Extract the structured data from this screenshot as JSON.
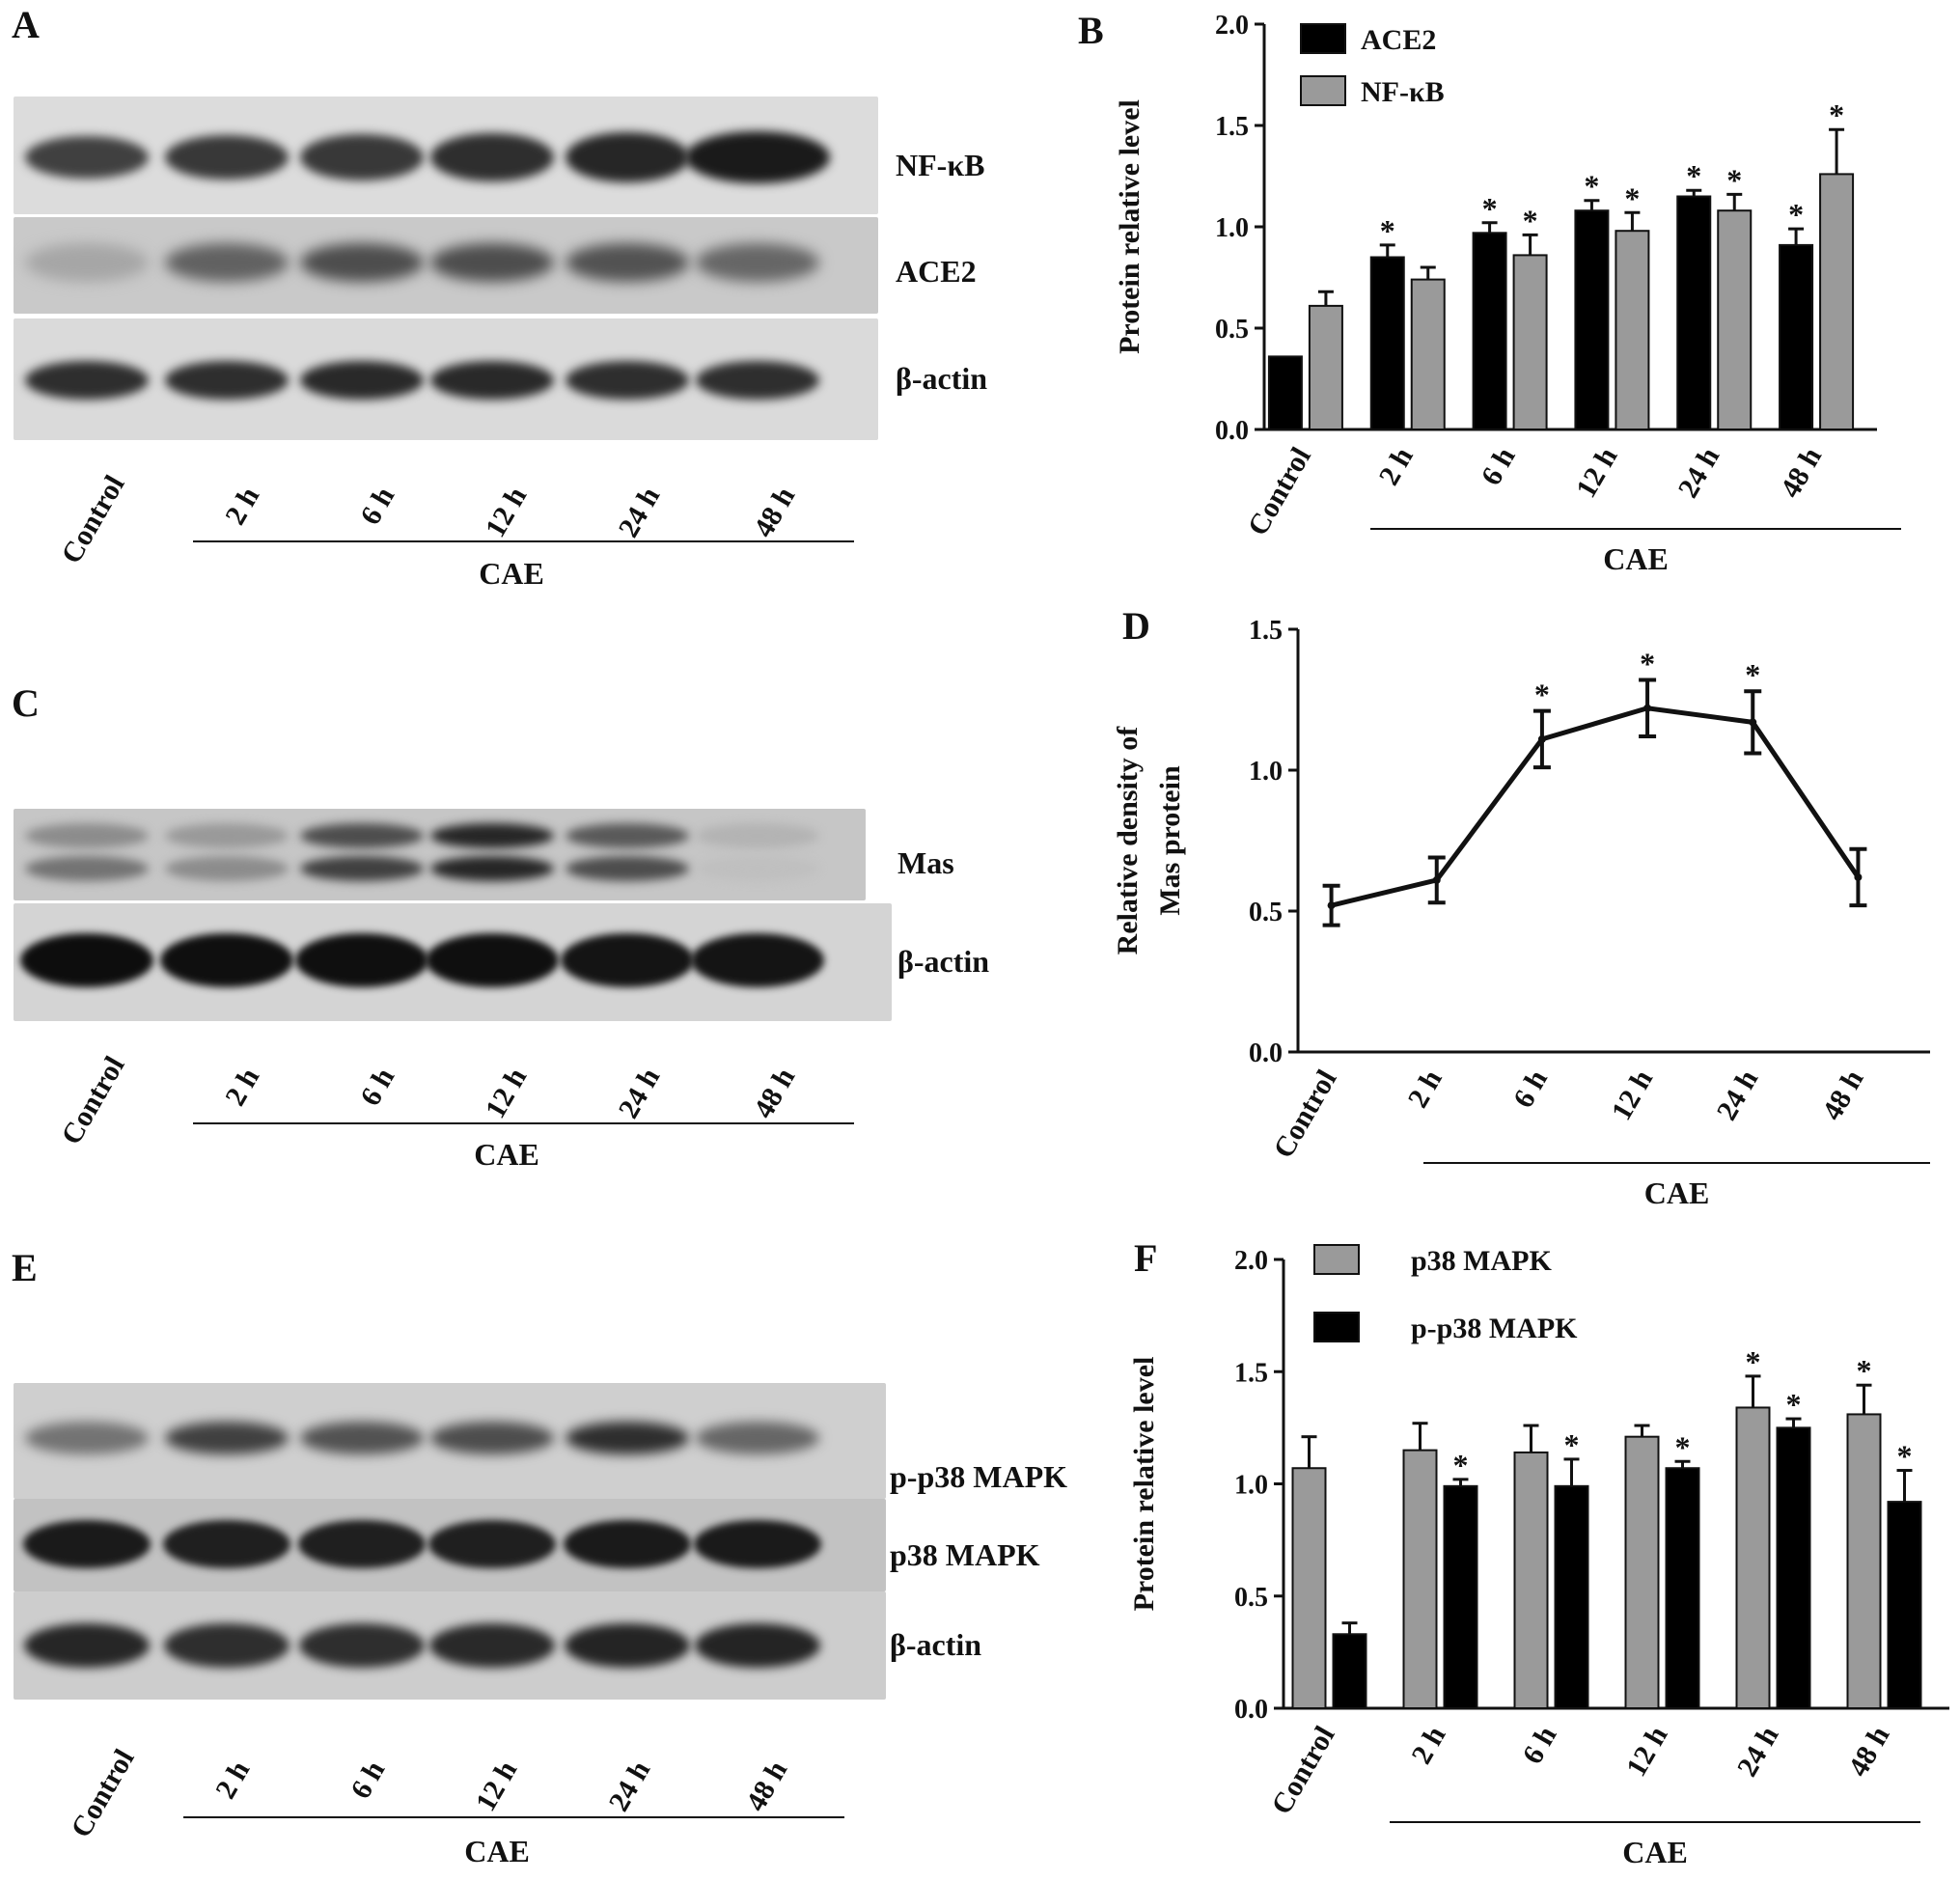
{
  "panels": {
    "A": {
      "letter": "A",
      "labels": [
        "NF-κB",
        "ACE2",
        "β-actin"
      ],
      "lanes": [
        "Control",
        "2 h",
        "6 h",
        "12 h",
        "24 h",
        "48 h"
      ],
      "group": "CAE"
    },
    "C": {
      "letter": "C",
      "labels": [
        "Mas",
        "β-actin"
      ],
      "lanes": [
        "Control",
        "2 h",
        "6 h",
        "12 h",
        "24 h",
        "48 h"
      ],
      "group": "CAE"
    },
    "E": {
      "letter": "E",
      "labels": [
        "p-p38 MAPK",
        "p38 MAPK",
        "β-actin"
      ],
      "lanes": [
        "Control",
        "2 h",
        "6 h",
        "12 h",
        "24 h",
        "48 h"
      ],
      "group": "CAE"
    }
  },
  "chart_data": [
    {
      "panel": "B",
      "type": "bar",
      "ylabel": "Protein relative level",
      "xgroup_label": "CAE",
      "categories": [
        "Control",
        "2 h",
        "6 h",
        "12 h",
        "24 h",
        "48 h"
      ],
      "ylim": [
        0,
        2.0
      ],
      "yticks": [
        "0.0",
        "0.5",
        "1.0",
        "1.5",
        "2.0"
      ],
      "legend_position": "top-left",
      "series": [
        {
          "name": "ACE2",
          "color": "#000000",
          "values": [
            0.36,
            0.85,
            0.97,
            1.08,
            1.15,
            0.91
          ],
          "errors": [
            0.0,
            0.06,
            0.05,
            0.05,
            0.03,
            0.08
          ],
          "significant": [
            false,
            true,
            true,
            true,
            true,
            true
          ]
        },
        {
          "name": "NF-κB",
          "color": "#9a9a9a",
          "values": [
            0.61,
            0.74,
            0.86,
            0.98,
            1.08,
            1.26
          ],
          "errors": [
            0.07,
            0.06,
            0.1,
            0.09,
            0.08,
            0.22
          ],
          "significant": [
            false,
            false,
            true,
            true,
            true,
            true
          ]
        }
      ]
    },
    {
      "panel": "D",
      "type": "line",
      "ylabel": "Relative density of Mas protein",
      "ylabel_lines": [
        "Relative density of",
        "Mas protein"
      ],
      "xgroup_label": "CAE",
      "categories": [
        "Control",
        "2 h",
        "6 h",
        "12 h",
        "24 h",
        "48 h"
      ],
      "ylim": [
        0,
        1.5
      ],
      "yticks": [
        "0.0",
        "0.5",
        "1.0",
        "1.5"
      ],
      "series": [
        {
          "values": [
            0.52,
            0.61,
            1.11,
            1.22,
            1.17,
            0.62
          ],
          "errors": [
            0.07,
            0.08,
            0.1,
            0.1,
            0.11,
            0.1
          ],
          "significant": [
            false,
            false,
            true,
            true,
            true,
            false
          ]
        }
      ]
    },
    {
      "panel": "F",
      "type": "bar",
      "ylabel": "Protein relative level",
      "xgroup_label": "CAE",
      "categories": [
        "Control",
        "2 h",
        "6 h",
        "12 h",
        "24 h",
        "48 h"
      ],
      "ylim": [
        0,
        2.0
      ],
      "yticks": [
        "0.0",
        "0.5",
        "1.0",
        "1.5",
        "2.0"
      ],
      "legend_position": "top-left",
      "series": [
        {
          "name": "p38 MAPK",
          "color": "#9a9a9a",
          "values": [
            1.07,
            1.15,
            1.14,
            1.21,
            1.34,
            1.31
          ],
          "errors": [
            0.14,
            0.12,
            0.12,
            0.05,
            0.14,
            0.13
          ],
          "significant": [
            false,
            false,
            false,
            false,
            true,
            true
          ]
        },
        {
          "name": "p-p38 MAPK",
          "color": "#000000",
          "values": [
            0.33,
            0.99,
            0.99,
            1.07,
            1.25,
            0.92
          ],
          "errors": [
            0.05,
            0.03,
            0.12,
            0.03,
            0.04,
            0.14
          ],
          "significant": [
            false,
            true,
            true,
            true,
            true,
            true
          ]
        }
      ]
    }
  ]
}
